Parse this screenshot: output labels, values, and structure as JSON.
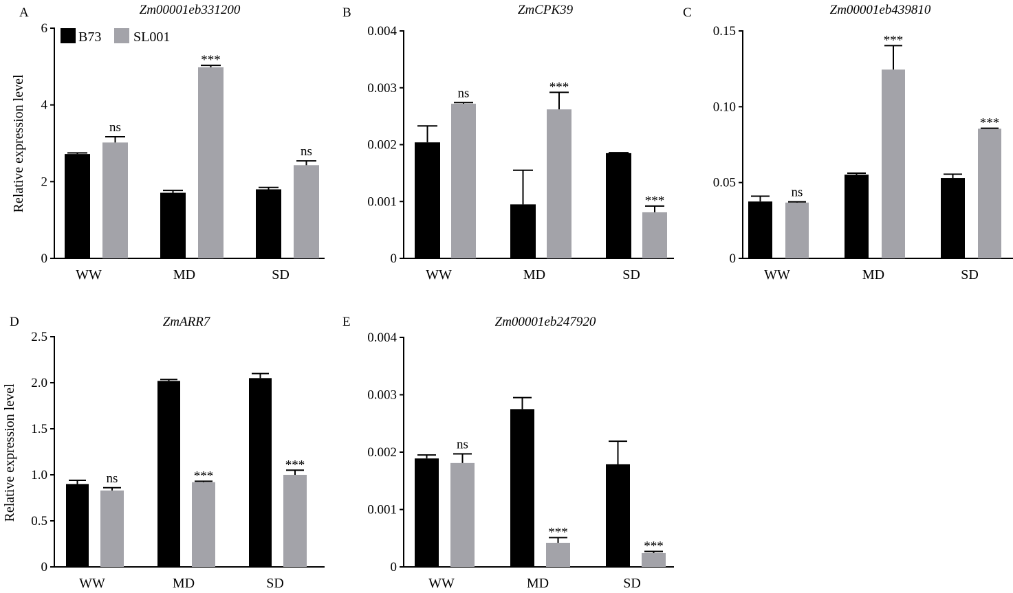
{
  "legend": {
    "items": [
      {
        "label": "B73",
        "color": "#000000"
      },
      {
        "label": "SL001",
        "color": "#a3a3a9"
      }
    ]
  },
  "chart_data": [
    {
      "type": "bar",
      "panel": "A",
      "title": "Zm00001eb331200",
      "ylabel": "Relative expression level",
      "categories": [
        "WW",
        "MD",
        "SD"
      ],
      "ylim": [
        0,
        6
      ],
      "yticks": [
        "0",
        "2",
        "4",
        "6"
      ],
      "series": [
        {
          "name": "B73",
          "values": [
            2.72,
            1.71,
            1.8
          ],
          "errors": [
            0.03,
            0.06,
            0.05
          ],
          "significance": [
            "",
            "",
            ""
          ]
        },
        {
          "name": "SL001",
          "values": [
            3.02,
            4.98,
            2.43
          ],
          "errors": [
            0.15,
            0.05,
            0.11
          ],
          "significance": [
            "ns",
            "***",
            "ns"
          ]
        }
      ]
    },
    {
      "type": "bar",
      "panel": "B",
      "title": "ZmCPK39",
      "ylabel": "",
      "categories": [
        "WW",
        "MD",
        "SD"
      ],
      "ylim": [
        0,
        0.004
      ],
      "yticks": [
        "0",
        "0.001",
        "0.002",
        "0.003",
        "0.004"
      ],
      "series": [
        {
          "name": "B73",
          "values": [
            0.00204,
            0.00095,
            0.00185
          ],
          "errors": [
            0.00029,
            0.0006,
            1e-05
          ],
          "significance": [
            "",
            "",
            ""
          ]
        },
        {
          "name": "SL001",
          "values": [
            0.00272,
            0.00262,
            0.00081
          ],
          "errors": [
            2e-05,
            0.0003,
            0.00011
          ],
          "significance": [
            "ns",
            "***",
            "***"
          ]
        }
      ]
    },
    {
      "type": "bar",
      "panel": "C",
      "title": "Zm00001eb439810",
      "ylabel": "",
      "categories": [
        "WW",
        "MD",
        "SD"
      ],
      "ylim": [
        0,
        0.15
      ],
      "yticks": [
        "0",
        "0.05",
        "0.10",
        "0.15"
      ],
      "series": [
        {
          "name": "B73",
          "values": [
            0.0375,
            0.0552,
            0.053
          ],
          "errors": [
            0.0035,
            0.001,
            0.0025
          ],
          "significance": [
            "",
            "",
            ""
          ]
        },
        {
          "name": "SL001",
          "values": [
            0.0368,
            0.1245,
            0.0855
          ],
          "errors": [
            0.0005,
            0.0158,
            0.0003
          ],
          "significance": [
            "ns",
            "***",
            "***"
          ]
        }
      ]
    },
    {
      "type": "bar",
      "panel": "D",
      "title": "ZmARR7",
      "ylabel": "Relative expression level",
      "categories": [
        "WW",
        "MD",
        "SD"
      ],
      "ylim": [
        0,
        2.5
      ],
      "yticks": [
        "0",
        "0.5",
        "1.0",
        "1.5",
        "2.0",
        "2.5"
      ],
      "series": [
        {
          "name": "B73",
          "values": [
            0.9,
            2.02,
            2.05
          ],
          "errors": [
            0.04,
            0.015,
            0.05
          ],
          "significance": [
            "",
            "",
            ""
          ]
        },
        {
          "name": "SL001",
          "values": [
            0.83,
            0.92,
            1.0
          ],
          "errors": [
            0.03,
            0.01,
            0.05
          ],
          "significance": [
            "ns",
            "***",
            "***"
          ]
        }
      ]
    },
    {
      "type": "bar",
      "panel": "E",
      "title": "Zm00001eb247920",
      "ylabel": "",
      "categories": [
        "WW",
        "MD",
        "SD"
      ],
      "ylim": [
        0,
        0.004
      ],
      "yticks": [
        "0",
        "0.001",
        "0.002",
        "0.003",
        "0.004"
      ],
      "series": [
        {
          "name": "B73",
          "values": [
            0.00189,
            0.00275,
            0.00179
          ],
          "errors": [
            6e-05,
            0.0002,
            0.0004
          ],
          "significance": [
            "",
            "",
            ""
          ]
        },
        {
          "name": "SL001",
          "values": [
            0.00181,
            0.00042,
            0.00024
          ],
          "errors": [
            0.00016,
            9e-05,
            3e-05
          ],
          "significance": [
            "ns",
            "***",
            "***"
          ]
        }
      ]
    }
  ]
}
